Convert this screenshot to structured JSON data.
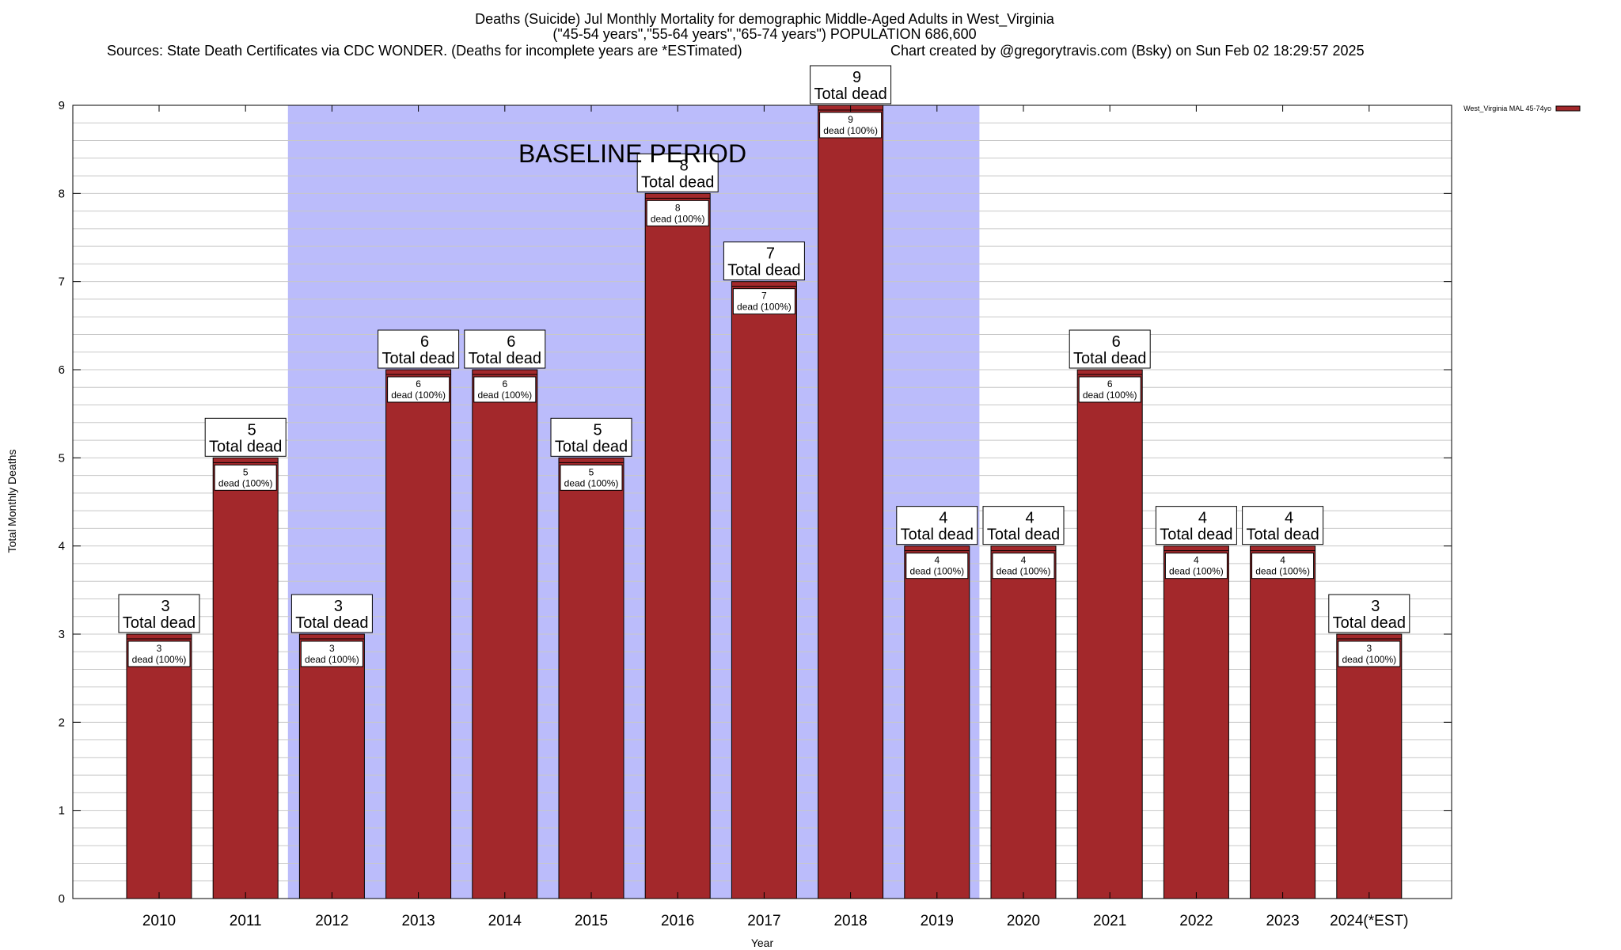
{
  "chart_data": {
    "type": "bar",
    "title": [
      "Deaths (Suicide) Jul Monthly Mortality for demographic Middle-Aged Adults in West_Virginia",
      "(\"45-54 years\",\"55-64 years\",\"65-74 years\") POPULATION 686,600"
    ],
    "sources": "Sources: State Death Certificates via CDC WONDER. (Deaths for incomplete years are *ESTimated)",
    "credit": "Chart created by @gregorytravis.com (Bsky) on Sun Feb 02 18:29:57 2025",
    "xlabel": "Year",
    "ylabel": "Total Monthly Deaths",
    "ylim": [
      0,
      9
    ],
    "yticks": [
      "0",
      "1",
      "2",
      "3",
      "4",
      "5",
      "6",
      "7",
      "8",
      "9"
    ],
    "grid": "horizontal minor lines",
    "categories": [
      "2010",
      "2011",
      "2012",
      "2013",
      "2014",
      "2015",
      "2016",
      "2017",
      "2018",
      "2019",
      "2020",
      "2021",
      "2022",
      "2023",
      "2024(*EST)"
    ],
    "series": [
      {
        "name": "West_Virginia MAL 45-74yo",
        "values": [
          3,
          5,
          3,
          6,
          6,
          5,
          8,
          7,
          9,
          4,
          4,
          6,
          4,
          4,
          3
        ]
      }
    ],
    "total_labels": [
      "3",
      "5",
      "3",
      "6",
      "6",
      "5",
      "8",
      "7",
      "9",
      "4",
      "4",
      "6",
      "4",
      "4",
      "3"
    ],
    "total_label_suffix": "Total dead",
    "inner_labels": [
      "3",
      "5",
      "3",
      "6",
      "6",
      "5",
      "8",
      "7",
      "9",
      "4",
      "4",
      "6",
      "4",
      "4",
      "3"
    ],
    "inner_label_suffix": "dead (100%)",
    "baseline": {
      "label": "BASELINE PERIOD",
      "from": "2012",
      "to": "2019"
    },
    "legend": {
      "placement": "top-right",
      "entry": "West_Virginia MAL 45-74yo"
    },
    "colors": {
      "bar": "#a3282b",
      "bar_cap": "#a3282b",
      "baseline_shade": "#bbbcfb",
      "grid": "#c8c8c8"
    }
  }
}
